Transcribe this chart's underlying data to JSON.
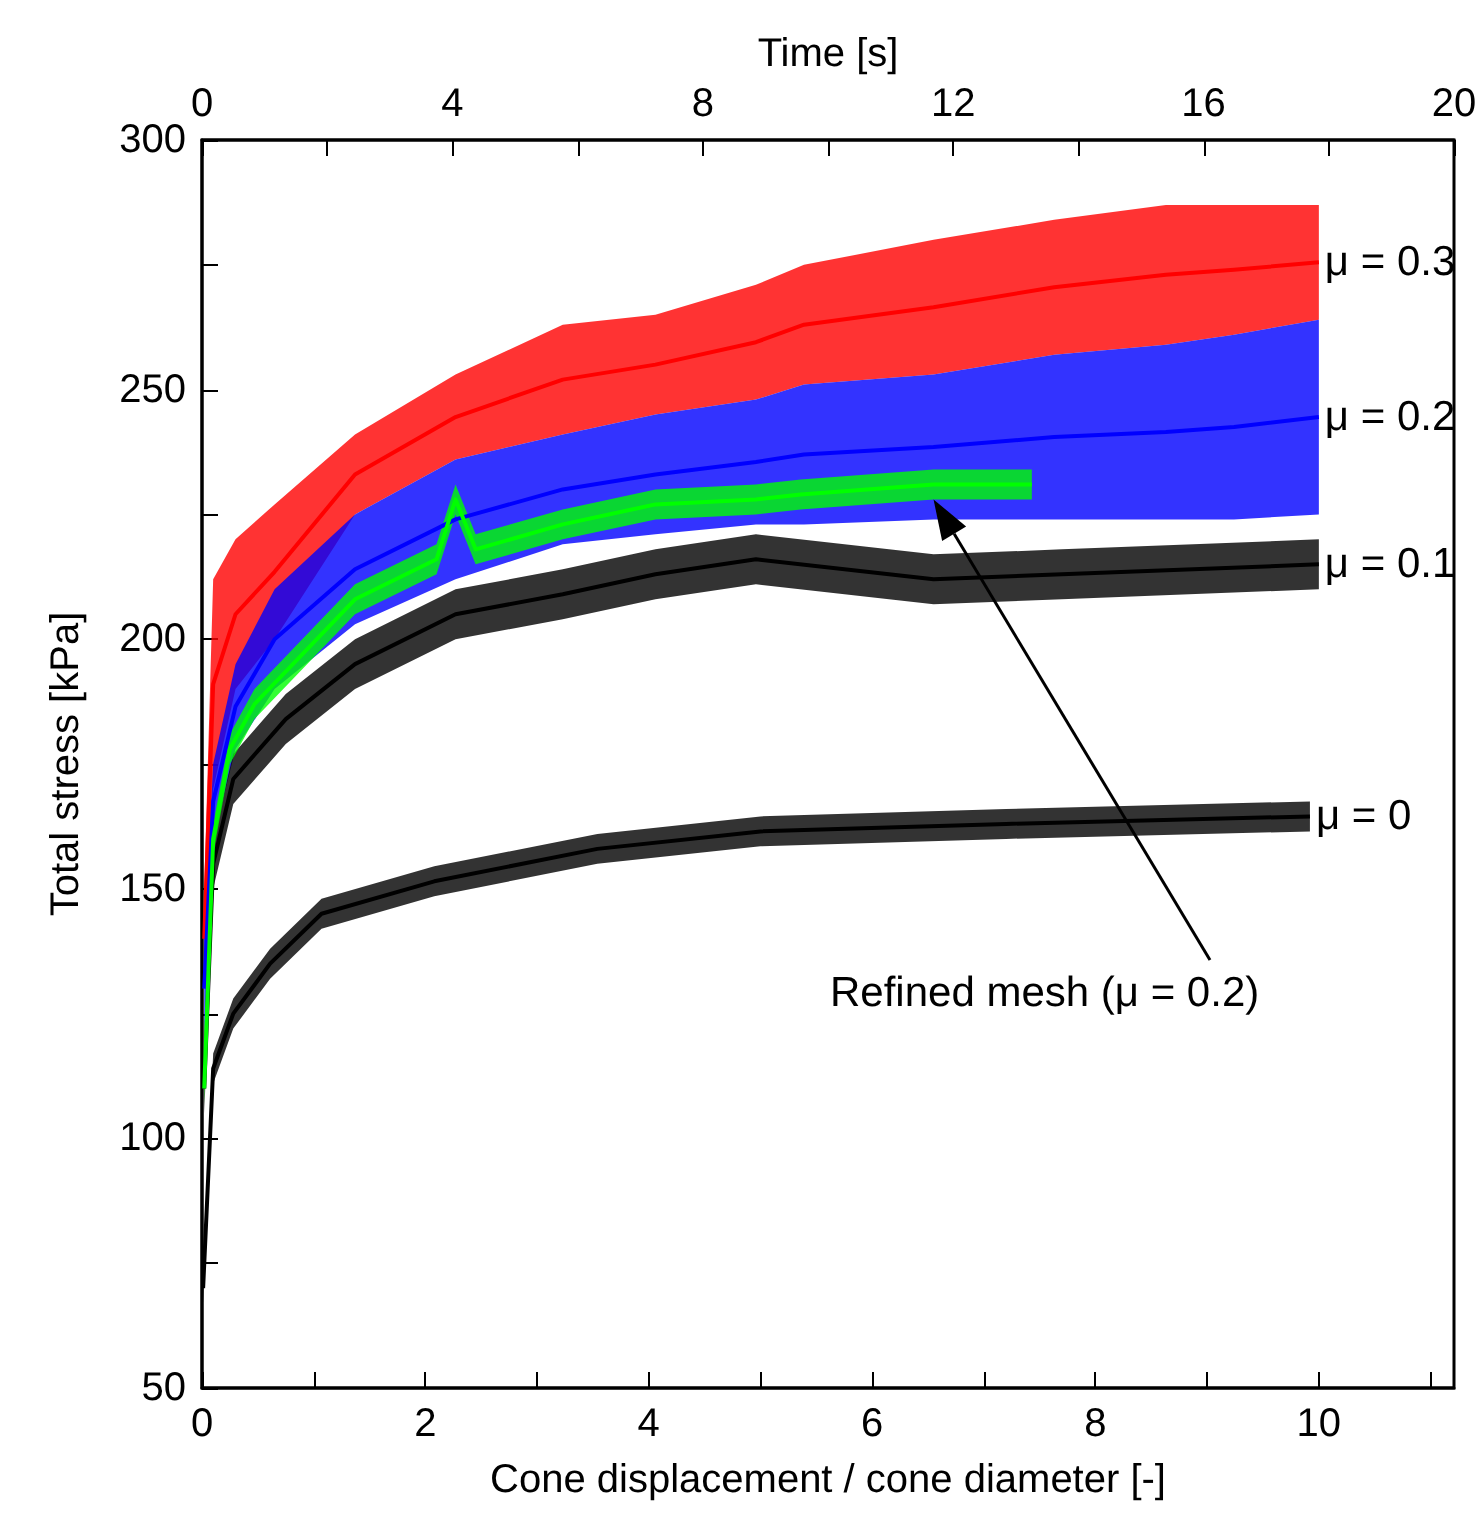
{
  "chart_data": {
    "type": "line",
    "xlabel": "Cone displacement / cone diameter [-]",
    "x2label": "Time [s]",
    "ylabel": "Total stress [kPa]",
    "xlim": [
      0,
      11.21
    ],
    "xticks": [
      0,
      {
        "value": 1,
        "label": null
      },
      2,
      {
        "value": 3,
        "label": null
      },
      4,
      {
        "value": 5,
        "label": null
      },
      6,
      {
        "value": 7,
        "label": null
      },
      8,
      {
        "value": 9,
        "label": null
      },
      10,
      {
        "value": 11,
        "label": null
      }
    ],
    "x2lim": [
      0,
      20
    ],
    "x2ticks": [
      0,
      {
        "value": 2,
        "label": null
      },
      4,
      {
        "value": 6,
        "label": null
      },
      8,
      {
        "value": 10,
        "label": null
      },
      12,
      {
        "value": 14,
        "label": null
      },
      16,
      {
        "value": 18,
        "label": null
      },
      20
    ],
    "ylim": [
      50,
      300
    ],
    "yticks": [
      50,
      {
        "value": 75,
        "label": null
      },
      100,
      {
        "value": 125,
        "label": null
      },
      150,
      {
        "value": 175,
        "label": null
      },
      200,
      {
        "value": 225,
        "label": null
      },
      250,
      {
        "value": 275,
        "label": null
      },
      300
    ],
    "series": [
      {
        "name": "μ = 0.3",
        "color": "#ff0000",
        "x": [
          0.02,
          0.1,
          0.3,
          0.65,
          1.37,
          2.27,
          3.23,
          4.06,
          4.96,
          5.39,
          6.55,
          7.63,
          8.63,
          9.24,
          10
        ],
        "values": [
          140,
          191,
          205,
          213.5,
          233,
          244.5,
          252,
          255,
          259.5,
          263,
          266.5,
          270.5,
          273,
          274,
          275.5
        ],
        "lower": [
          130,
          170,
          190,
          200,
          225,
          236,
          241,
          245,
          248,
          251,
          253,
          257,
          259,
          261,
          264
        ],
        "upper": [
          150,
          212,
          220,
          227,
          241,
          253,
          263,
          265,
          271,
          275,
          280,
          284,
          287,
          287,
          287
        ]
      },
      {
        "name": "μ = 0.2",
        "color": "#0000ff",
        "x": [
          0.02,
          0.1,
          0.3,
          0.65,
          1.37,
          2.27,
          3.23,
          4.06,
          4.96,
          5.39,
          6.55,
          7.63,
          8.63,
          9.24,
          10
        ],
        "values": [
          130,
          167.5,
          186.5,
          200,
          214,
          224,
          230,
          233,
          235.5,
          237,
          238.5,
          240.5,
          241.5,
          242.5,
          244.5
        ],
        "lower": [
          120,
          160,
          178,
          190,
          203,
          212,
          219,
          221,
          223,
          223,
          224,
          224,
          224,
          224,
          225
        ],
        "upper": [
          140,
          175,
          195,
          210,
          225,
          236,
          241,
          245,
          248,
          251,
          253,
          257,
          259,
          261,
          264
        ]
      },
      {
        "name": "μ = 0.1",
        "color": "#000000",
        "x": [
          0.02,
          0.1,
          0.28,
          0.75,
          1.37,
          2.27,
          3.23,
          4.06,
          4.96,
          6.55,
          7.7,
          10
        ],
        "values": [
          110,
          155,
          172,
          184,
          195,
          205,
          209,
          213,
          216,
          212,
          213,
          215
        ],
        "lower": [
          105,
          150,
          167,
          179,
          190,
          200,
          204,
          208,
          211,
          207,
          208,
          210
        ],
        "upper": [
          115,
          160,
          177,
          189,
          200,
          210,
          214,
          218,
          221,
          217,
          218,
          220
        ]
      },
      {
        "name": "μ = 0",
        "color": "#000000",
        "x": [
          0.01,
          0.1,
          0.28,
          0.61,
          1.07,
          2.08,
          3.54,
          5.0,
          7.2,
          9.92
        ],
        "values": [
          70,
          114,
          125,
          135,
          145,
          151.5,
          158,
          161.5,
          163,
          164.5
        ],
        "lower": [
          67,
          111,
          122,
          132,
          142,
          148.5,
          155,
          158.5,
          160,
          161.5
        ],
        "upper": [
          73,
          117,
          128,
          138,
          148,
          154.5,
          161,
          164.5,
          166,
          167.5
        ]
      },
      {
        "name": "Refined mesh (μ = 0.2)",
        "color": "#00ff00",
        "x": [
          0.02,
          0.1,
          0.25,
          0.47,
          1.37,
          2.1,
          2.27,
          2.45,
          3.23,
          4.06,
          4.96,
          5.36,
          6.55,
          7.43
        ],
        "values": [
          110,
          160,
          178,
          187,
          208,
          216,
          228,
          218,
          223,
          227,
          228,
          229,
          231,
          231
        ],
        "lower": [
          107,
          157,
          175,
          184,
          205,
          213,
          225,
          215,
          220,
          224,
          225,
          226,
          228,
          228
        ],
        "upper": [
          113,
          163,
          181,
          190,
          211,
          219,
          231,
          221,
          226,
          230,
          231,
          232,
          234,
          234
        ]
      }
    ]
  }
}
